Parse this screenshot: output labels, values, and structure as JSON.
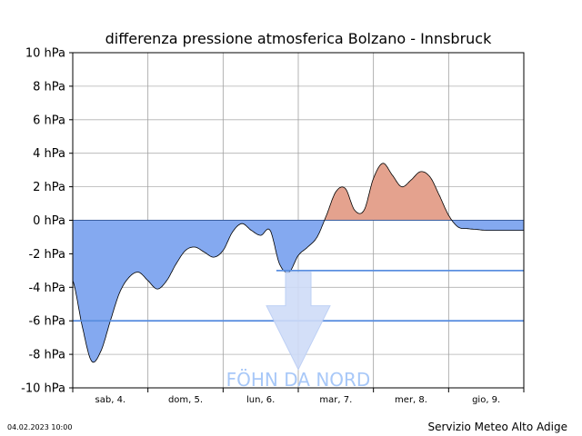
{
  "chart_data": {
    "type": "area",
    "title": "differenza pressione atmosferica Bolzano - Innsbruck",
    "ylabel": "",
    "xlabel": "",
    "y_unit": "hPa",
    "ylim": [
      -10,
      10
    ],
    "y_ticks": [
      {
        "value": 10,
        "label": "10 hPa"
      },
      {
        "value": 8,
        "label": "8 hPa"
      },
      {
        "value": 6,
        "label": "6 hPa"
      },
      {
        "value": 4,
        "label": "4 hPa"
      },
      {
        "value": 2,
        "label": "2 hPa"
      },
      {
        "value": 0,
        "label": "0 hPa"
      },
      {
        "value": -2,
        "label": "-2 hPa"
      },
      {
        "value": -4,
        "label": "-4 hPa"
      },
      {
        "value": -6,
        "label": "-6 hPa"
      },
      {
        "value": -8,
        "label": "-8 hPa"
      },
      {
        "value": -10,
        "label": "-10 hPa"
      }
    ],
    "xlim_hours": [
      0,
      144
    ],
    "day_labels": [
      "sab, 4.",
      "dom, 5.",
      "lun, 6.",
      "mar, 7.",
      "mer, 8.",
      "gio, 9."
    ],
    "grid": true,
    "series": [
      {
        "values_hours": [
          0,
          3,
          6,
          9,
          12,
          15,
          18,
          21,
          24,
          27,
          30,
          33,
          36,
          39,
          42,
          45,
          48,
          51,
          54,
          57,
          60,
          63,
          66,
          69,
          72,
          75,
          78,
          81,
          84,
          87,
          90,
          93,
          96,
          99,
          102,
          105,
          108,
          111,
          114,
          117,
          120,
          123,
          126,
          129,
          132,
          135,
          138,
          141,
          144
        ],
        "values": [
          -3.6,
          -6.3,
          -8.4,
          -7.8,
          -6.0,
          -4.3,
          -3.4,
          -3.1,
          -3.6,
          -4.1,
          -3.6,
          -2.6,
          -1.8,
          -1.6,
          -1.9,
          -2.2,
          -1.8,
          -0.7,
          -0.2,
          -0.6,
          -0.9,
          -0.6,
          -2.6,
          -3.1,
          -2.1,
          -1.6,
          -1.0,
          0.3,
          1.7,
          1.9,
          0.6,
          0.6,
          2.5,
          3.4,
          2.7,
          2.0,
          2.4,
          2.9,
          2.6,
          1.5,
          0.3,
          -0.4,
          -0.5,
          -0.55,
          -0.6,
          -0.6,
          -0.6,
          -0.6,
          -0.6
        ]
      }
    ],
    "colors": {
      "positive_fill": "#e4a28e",
      "negative_fill": "#84a9f0",
      "threshold_line": "#5b8fe0",
      "arrow_fill": "#cfdcf8",
      "foehn_text": "#a8c8f8"
    },
    "threshold_lines": [
      -3,
      -6
    ],
    "annotation": "FÖHN DA NORD"
  },
  "footer": {
    "timestamp": "04.02.2023 10:00",
    "source": "Servizio Meteo Alto Adige"
  }
}
